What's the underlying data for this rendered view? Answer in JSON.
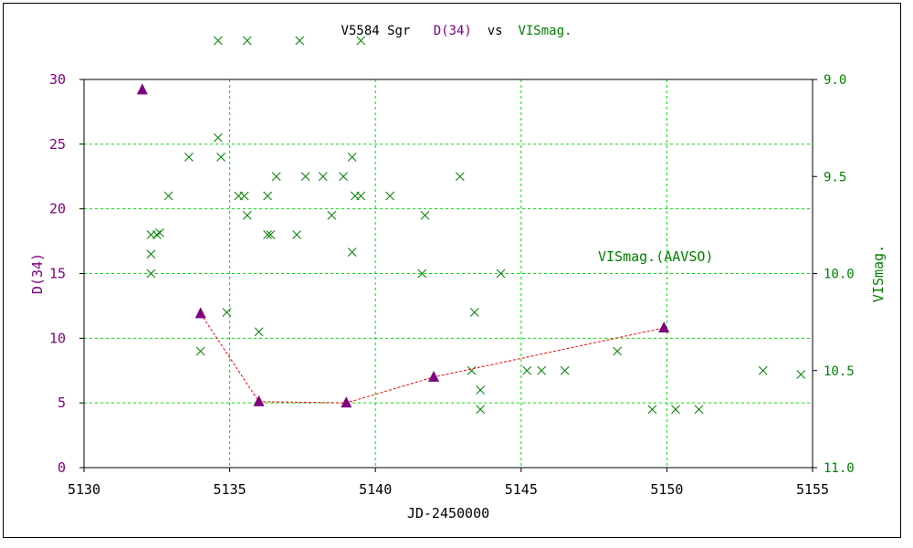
{
  "title": {
    "star": "V5584 Sgr",
    "series1": "D(34)",
    "vs": "vs",
    "series2": "VISmag."
  },
  "colors": {
    "left_axis": "#800080",
    "right_axis": "#008000",
    "grid": "#00e000",
    "dline": "#ff0000",
    "vis_marker": "#008000",
    "d_marker": "#800080"
  },
  "chart_data": {
    "type": "scatter",
    "xlabel": "JD-2450000",
    "xlim": [
      5130,
      5155
    ],
    "xticks": [
      5130,
      5135,
      5140,
      5145,
      5150,
      5155
    ],
    "ylabel_left": "D(34)",
    "ylim_left": [
      0,
      30
    ],
    "yticks_left": [
      0,
      5,
      10,
      15,
      20,
      25,
      30
    ],
    "ylabel_right": "VISmag.",
    "ylim_right": [
      11.0,
      9.0
    ],
    "yticks_right": [
      "9.0",
      "9.5",
      "10.0",
      "10.5",
      "11.0"
    ],
    "grid": true,
    "annotation": "VISmag.(AAVSO)",
    "series": [
      {
        "name": "D(34)",
        "axis": "left",
        "marker": "triangle",
        "x": [
          5132.0,
          5134.0,
          5136.0,
          5139.0,
          5142.0,
          5149.9
        ],
        "y": [
          29.2,
          11.9,
          5.1,
          5.0,
          7.0,
          10.8
        ],
        "line_from_index": 1
      },
      {
        "name": "VISmag.",
        "axis": "right",
        "marker": "x",
        "points": [
          [
            5132.3,
            10.0
          ],
          [
            5132.3,
            9.9
          ],
          [
            5132.3,
            9.8
          ],
          [
            5132.5,
            9.8
          ],
          [
            5132.6,
            9.79
          ],
          [
            5132.9,
            9.6
          ],
          [
            5133.6,
            9.4
          ],
          [
            5134.0,
            10.4
          ],
          [
            5134.6,
            8.8
          ],
          [
            5134.6,
            9.3
          ],
          [
            5134.7,
            9.4
          ],
          [
            5134.9,
            10.2
          ],
          [
            5135.3,
            9.6
          ],
          [
            5135.5,
            9.6
          ],
          [
            5135.6,
            9.7
          ],
          [
            5135.6,
            8.8
          ],
          [
            5136.0,
            10.3
          ],
          [
            5136.3,
            9.6
          ],
          [
            5136.3,
            9.8
          ],
          [
            5136.4,
            9.8
          ],
          [
            5136.6,
            9.5
          ],
          [
            5137.3,
            9.8
          ],
          [
            5137.4,
            8.8
          ],
          [
            5137.6,
            9.5
          ],
          [
            5138.2,
            9.5
          ],
          [
            5138.5,
            9.7
          ],
          [
            5138.9,
            9.5
          ],
          [
            5139.2,
            9.4
          ],
          [
            5139.3,
            9.6
          ],
          [
            5139.2,
            9.89
          ],
          [
            5139.5,
            9.6
          ],
          [
            5139.5,
            8.8
          ],
          [
            5140.5,
            9.6
          ],
          [
            5141.6,
            10.0
          ],
          [
            5141.7,
            9.7
          ],
          [
            5142.9,
            9.5
          ],
          [
            5143.3,
            10.5
          ],
          [
            5143.4,
            10.2
          ],
          [
            5143.6,
            10.6
          ],
          [
            5143.6,
            10.7
          ],
          [
            5144.3,
            10.0
          ],
          [
            5145.2,
            10.5
          ],
          [
            5145.7,
            10.5
          ],
          [
            5146.5,
            10.5
          ],
          [
            5148.3,
            10.4
          ],
          [
            5149.5,
            10.7
          ],
          [
            5150.3,
            10.7
          ],
          [
            5151.1,
            10.7
          ],
          [
            5153.3,
            10.5
          ],
          [
            5154.6,
            10.52
          ]
        ]
      }
    ]
  }
}
